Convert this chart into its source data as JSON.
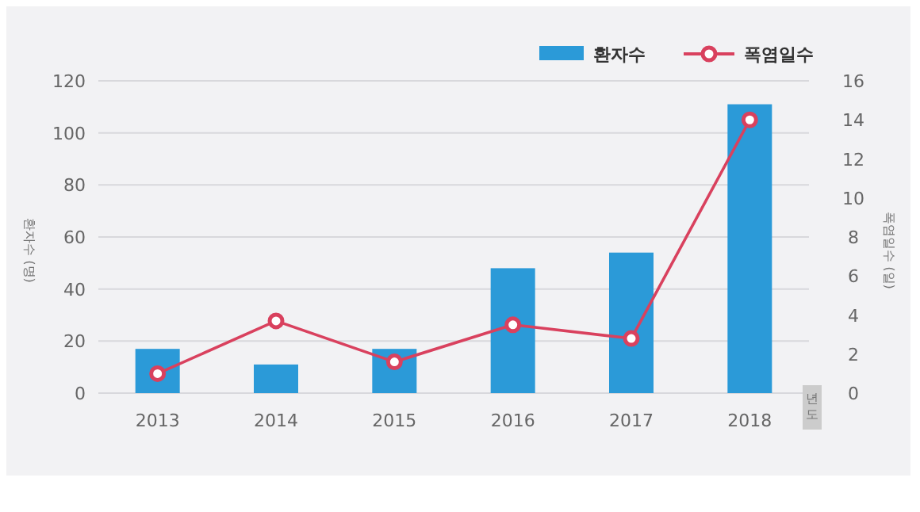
{
  "chart_data": {
    "type": "bar",
    "categories": [
      "2013",
      "2014",
      "2015",
      "2016",
      "2017",
      "2018"
    ],
    "series": [
      {
        "name": "환자수",
        "color": "#2b9ad8",
        "values": [
          17,
          11,
          17,
          48,
          54,
          111
        ]
      },
      {
        "name": "폭염일수",
        "type": "line",
        "axis": "y2",
        "color": "#d9415e",
        "marker": "circle",
        "values": [
          1,
          3.7,
          1.6,
          3.5,
          2.8,
          14
        ]
      }
    ],
    "xlabel": "년도",
    "ylabel": "환자수 (명)",
    "y2label": "폭염일수 (일)",
    "ylim": [
      0,
      120
    ],
    "yticks": [
      0,
      20,
      40,
      60,
      80,
      100,
      120
    ],
    "y2lim": [
      0,
      16
    ],
    "y2ticks": [
      0,
      2,
      4,
      6,
      8,
      10,
      12,
      14,
      16
    ],
    "grid": "y",
    "legend": "top right"
  }
}
